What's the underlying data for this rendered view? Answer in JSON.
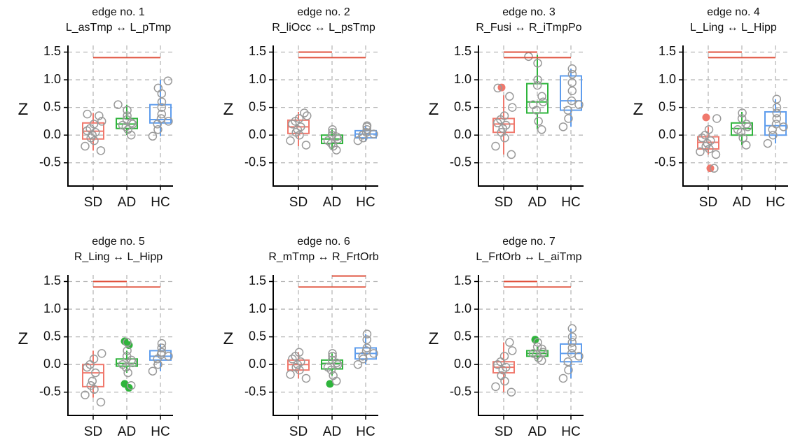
{
  "chart_data": [
    {
      "type": "box",
      "title": "edge no. 1",
      "subtitle": "L_asTmp ↔ L_pTmp",
      "ylabel": "Z",
      "categories": [
        "SD",
        "AD",
        "HC"
      ],
      "ylim": [
        -0.92,
        1.62
      ],
      "yticks": [
        -0.5,
        {
          "value": 0,
          "label": "0.0"
        },
        0.5,
        {
          "value": 1,
          "label": "1.0"
        },
        1.5
      ],
      "grid": true,
      "boxes": [
        {
          "color": "#f0786c",
          "q1": -0.07,
          "median": 0.07,
          "q3": 0.22,
          "whisker_low": -0.28,
          "whisker_high": 0.4,
          "outliers": [],
          "points": [
            -0.28,
            -0.2,
            -0.1,
            -0.05,
            0.0,
            0.05,
            0.08,
            0.12,
            0.2,
            0.25,
            0.35,
            0.38
          ]
        },
        {
          "color": "#2fb43c",
          "q1": 0.12,
          "median": 0.2,
          "q3": 0.3,
          "whisker_low": 0.0,
          "whisker_high": 0.55,
          "outliers": [],
          "points": [
            0.0,
            0.1,
            0.15,
            0.18,
            0.2,
            0.22,
            0.28,
            0.35,
            0.45,
            0.55
          ]
        },
        {
          "color": "#5f9ded",
          "q1": 0.22,
          "median": 0.28,
          "q3": 0.55,
          "whisker_low": -0.02,
          "whisker_high": 1.0,
          "outliers": [],
          "points": [
            -0.02,
            0.1,
            0.2,
            0.25,
            0.3,
            0.38,
            0.5,
            0.6,
            0.75,
            0.85,
            0.98
          ]
        }
      ],
      "significance": [
        {
          "pair": [
            "SD",
            "HC"
          ],
          "y": 1.4
        }
      ]
    },
    {
      "type": "box",
      "title": "edge no. 2",
      "subtitle": "R_liOcc ↔ L_psTmp",
      "ylabel": "Z",
      "categories": [
        "SD",
        "AD",
        "HC"
      ],
      "ylim": [
        -0.92,
        1.62
      ],
      "yticks": [
        -0.5,
        {
          "value": 0,
          "label": "0.0"
        },
        0.5,
        {
          "value": 1,
          "label": "1.0"
        },
        1.5
      ],
      "grid": true,
      "boxes": [
        {
          "color": "#f0786c",
          "q1": 0.03,
          "median": 0.15,
          "q3": 0.27,
          "whisker_low": -0.2,
          "whisker_high": 0.42,
          "outliers": [],
          "points": [
            -0.18,
            -0.1,
            0.0,
            0.05,
            0.1,
            0.15,
            0.2,
            0.25,
            0.3,
            0.35,
            0.4
          ]
        },
        {
          "color": "#2fb43c",
          "q1": -0.15,
          "median": -0.07,
          "q3": 0.0,
          "whisker_low": -0.27,
          "whisker_high": 0.1,
          "outliers": [],
          "points": [
            -0.27,
            -0.2,
            -0.15,
            -0.1,
            -0.07,
            -0.03,
            0.0,
            0.05,
            0.1
          ]
        },
        {
          "color": "#5f9ded",
          "q1": -0.05,
          "median": 0.02,
          "q3": 0.08,
          "whisker_low": -0.1,
          "whisker_high": 0.17,
          "outliers": [],
          "points": [
            -0.1,
            -0.05,
            0.0,
            0.02,
            0.05,
            0.1,
            0.15,
            0.17
          ]
        }
      ],
      "significance": [
        {
          "pair": [
            "SD",
            "AD"
          ],
          "y": 1.5
        },
        {
          "pair": [
            "SD",
            "HC"
          ],
          "y": 1.4
        }
      ]
    },
    {
      "type": "box",
      "title": "edge no. 3",
      "subtitle": "R_Fusi ↔ R_iTmpPo",
      "ylabel": "Z",
      "categories": [
        "SD",
        "AD",
        "HC"
      ],
      "ylim": [
        -0.92,
        1.62
      ],
      "yticks": [
        -0.5,
        {
          "value": 0,
          "label": "0.0"
        },
        0.5,
        {
          "value": 1,
          "label": "1.0"
        },
        1.5
      ],
      "grid": true,
      "boxes": [
        {
          "color": "#f0786c",
          "q1": 0.05,
          "median": 0.2,
          "q3": 0.3,
          "whisker_low": -0.35,
          "whisker_high": 0.72,
          "outliers": [
            0.86
          ],
          "points": [
            -0.35,
            -0.2,
            -0.05,
            0.05,
            0.12,
            0.18,
            0.22,
            0.28,
            0.35,
            0.5,
            0.7,
            0.85
          ]
        },
        {
          "color": "#2fb43c",
          "q1": 0.4,
          "median": 0.6,
          "q3": 0.93,
          "whisker_low": 0.1,
          "whisker_high": 1.45,
          "outliers": [],
          "points": [
            0.1,
            0.25,
            0.45,
            0.55,
            0.6,
            0.7,
            0.9,
            1.0,
            1.3,
            1.42
          ]
        },
        {
          "color": "#5f9ded",
          "q1": 0.45,
          "median": 0.62,
          "q3": 1.07,
          "whisker_low": 0.15,
          "whisker_high": 1.2,
          "outliers": [],
          "points": [
            0.15,
            0.3,
            0.45,
            0.55,
            0.62,
            0.8,
            0.95,
            1.1,
            1.2
          ]
        }
      ],
      "significance": [
        {
          "pair": [
            "SD",
            "AD"
          ],
          "y": 1.5
        },
        {
          "pair": [
            "SD",
            "HC"
          ],
          "y": 1.4
        }
      ]
    },
    {
      "type": "box",
      "title": "edge no. 4",
      "subtitle": "L_Ling ↔ L_Hipp",
      "ylabel": "Z",
      "categories": [
        "SD",
        "AD",
        "HC"
      ],
      "ylim": [
        -0.92,
        1.62
      ],
      "yticks": [
        -0.5,
        {
          "value": 0,
          "label": "0.0"
        },
        0.5,
        {
          "value": 1,
          "label": "1.0"
        },
        1.5
      ],
      "grid": true,
      "boxes": [
        {
          "color": "#f0786c",
          "q1": -0.25,
          "median": -0.13,
          "q3": -0.03,
          "whisker_low": -0.35,
          "whisker_high": 0.15,
          "outliers": [
            0.32,
            -0.6
          ],
          "points": [
            -0.35,
            -0.3,
            -0.25,
            -0.2,
            -0.15,
            -0.1,
            -0.05,
            0.0,
            0.1,
            0.3,
            -0.6
          ]
        },
        {
          "color": "#2fb43c",
          "q1": 0.0,
          "median": 0.12,
          "q3": 0.22,
          "whisker_low": -0.18,
          "whisker_high": 0.42,
          "outliers": [],
          "points": [
            -0.18,
            -0.05,
            0.05,
            0.1,
            0.15,
            0.2,
            0.3,
            0.4
          ]
        },
        {
          "color": "#5f9ded",
          "q1": 0.0,
          "median": 0.17,
          "q3": 0.42,
          "whisker_low": -0.15,
          "whisker_high": 0.65,
          "outliers": [],
          "points": [
            -0.15,
            0.0,
            0.1,
            0.15,
            0.2,
            0.3,
            0.4,
            0.5,
            0.65
          ]
        }
      ],
      "significance": [
        {
          "pair": [
            "SD",
            "AD"
          ],
          "y": 1.5
        },
        {
          "pair": [
            "SD",
            "HC"
          ],
          "y": 1.4
        }
      ]
    },
    {
      "type": "box",
      "title": "edge no. 5",
      "subtitle": "R_Ling ↔ L_Hipp",
      "ylabel": "Z",
      "categories": [
        "SD",
        "AD",
        "HC"
      ],
      "ylim": [
        -0.92,
        1.62
      ],
      "yticks": [
        -0.5,
        {
          "value": 0,
          "label": "0.0"
        },
        0.5,
        {
          "value": 1,
          "label": "1.0"
        },
        1.5
      ],
      "grid": true,
      "boxes": [
        {
          "color": "#f0786c",
          "q1": -0.4,
          "median": -0.15,
          "q3": 0.0,
          "whisker_low": -0.6,
          "whisker_high": 0.25,
          "outliers": [],
          "points": [
            -0.68,
            -0.55,
            -0.45,
            -0.38,
            -0.3,
            -0.15,
            -0.05,
            0.0,
            0.1,
            0.2
          ]
        },
        {
          "color": "#2fb43c",
          "q1": -0.03,
          "median": 0.02,
          "q3": 0.1,
          "whisker_low": -0.15,
          "whisker_high": 0.25,
          "outliers": [
            0.42,
            0.35,
            -0.35,
            -0.42
          ],
          "points": [
            -0.38,
            -0.15,
            -0.05,
            0.0,
            0.03,
            0.08,
            0.15,
            0.25,
            0.4
          ]
        },
        {
          "color": "#5f9ded",
          "q1": 0.08,
          "median": 0.15,
          "q3": 0.25,
          "whisker_low": -0.12,
          "whisker_high": 0.38,
          "outliers": [],
          "points": [
            -0.12,
            0.0,
            0.1,
            0.15,
            0.18,
            0.22,
            0.3,
            0.38
          ]
        }
      ],
      "significance": [
        {
          "pair": [
            "SD",
            "AD"
          ],
          "y": 1.5
        },
        {
          "pair": [
            "SD",
            "HC"
          ],
          "y": 1.4
        }
      ]
    },
    {
      "type": "box",
      "title": "edge no. 6",
      "subtitle": "R_mTmp ↔ R_FrtOrb",
      "ylabel": "Z",
      "categories": [
        "SD",
        "AD",
        "HC"
      ],
      "ylim": [
        -0.92,
        1.62
      ],
      "yticks": [
        -0.5,
        {
          "value": 0,
          "label": "0.0"
        },
        0.5,
        {
          "value": 1,
          "label": "1.0"
        },
        1.5
      ],
      "grid": true,
      "boxes": [
        {
          "color": "#f0786c",
          "q1": -0.1,
          "median": 0.0,
          "q3": 0.08,
          "whisker_low": -0.25,
          "whisker_high": 0.22,
          "outliers": [],
          "points": [
            -0.25,
            -0.18,
            -0.1,
            -0.05,
            0.0,
            0.05,
            0.1,
            0.15,
            0.22
          ]
        },
        {
          "color": "#2fb43c",
          "q1": -0.08,
          "median": 0.02,
          "q3": 0.08,
          "whisker_low": -0.2,
          "whisker_high": 0.2,
          "outliers": [
            -0.35
          ],
          "points": [
            -0.3,
            -0.2,
            -0.1,
            -0.05,
            0.0,
            0.03,
            0.08,
            0.15,
            0.2
          ]
        },
        {
          "color": "#5f9ded",
          "q1": 0.1,
          "median": 0.2,
          "q3": 0.3,
          "whisker_low": 0.0,
          "whisker_high": 0.55,
          "outliers": [],
          "points": [
            0.0,
            0.1,
            0.15,
            0.2,
            0.25,
            0.3,
            0.45,
            0.55
          ]
        }
      ],
      "significance": [
        {
          "pair": [
            "AD",
            "HC"
          ],
          "y": 1.6
        },
        {
          "pair": [
            "SD",
            "HC"
          ],
          "y": 1.4
        }
      ]
    },
    {
      "type": "box",
      "title": "edge no. 7",
      "subtitle": "L_FrtOrb ↔ L_aiTmp",
      "ylabel": "Z",
      "categories": [
        "SD",
        "AD",
        "HC"
      ],
      "ylim": [
        -0.92,
        1.62
      ],
      "yticks": [
        -0.5,
        {
          "value": 0,
          "label": "0.0"
        },
        0.5,
        {
          "value": 1,
          "label": "1.0"
        },
        1.5
      ],
      "grid": true,
      "boxes": [
        {
          "color": "#f0786c",
          "q1": -0.15,
          "median": -0.05,
          "q3": 0.05,
          "whisker_low": -0.5,
          "whisker_high": 0.4,
          "outliers": [],
          "points": [
            -0.5,
            -0.4,
            -0.3,
            -0.2,
            -0.1,
            -0.05,
            0.0,
            0.05,
            0.15,
            0.25,
            0.4
          ]
        },
        {
          "color": "#2fb43c",
          "q1": 0.15,
          "median": 0.2,
          "q3": 0.25,
          "whisker_low": 0.07,
          "whisker_high": 0.32,
          "outliers": [
            0.45
          ],
          "points": [
            0.07,
            0.12,
            0.18,
            0.2,
            0.22,
            0.28,
            0.32,
            0.4
          ]
        },
        {
          "color": "#5f9ded",
          "q1": 0.05,
          "median": 0.2,
          "q3": 0.37,
          "whisker_low": -0.25,
          "whisker_high": 0.65,
          "outliers": [],
          "points": [
            -0.25,
            -0.1,
            0.05,
            0.15,
            0.2,
            0.3,
            0.4,
            0.5,
            0.65
          ]
        }
      ],
      "significance": [
        {
          "pair": [
            "SD",
            "AD"
          ],
          "y": 1.5
        },
        {
          "pair": [
            "SD",
            "HC"
          ],
          "y": 1.4
        }
      ]
    }
  ]
}
